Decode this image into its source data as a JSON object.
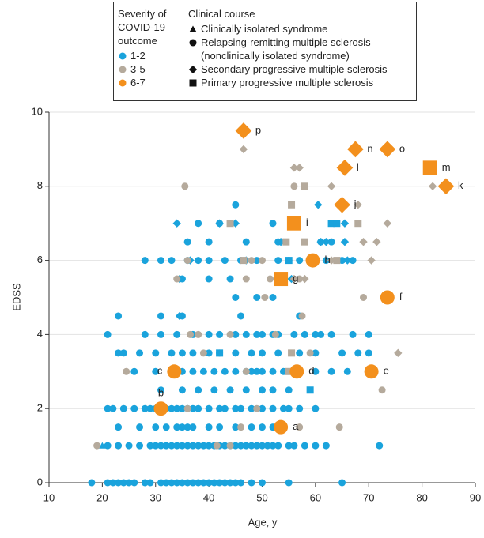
{
  "chart_data": {
    "type": "scatter",
    "xlabel": "Age, y",
    "ylabel": "EDSS",
    "xlim": [
      10,
      90
    ],
    "xticks": [
      10,
      20,
      30,
      40,
      50,
      60,
      70,
      80,
      90
    ],
    "ylim": [
      0,
      10
    ],
    "yticks": [
      0,
      2,
      4,
      6,
      8,
      10
    ],
    "grid": true,
    "severity_title": "Severity of COVID-19 outcome",
    "course_title": "Clinical course",
    "courses": [
      {
        "name": "Clinically isolated syndrome",
        "marker": "triangle"
      },
      {
        "name": "Relapsing-remitting multiple sclerosis (nonclinically isolated syndrome)",
        "marker": "circle"
      },
      {
        "name": "Secondary progressive multiple sclerosis",
        "marker": "diamond"
      },
      {
        "name": "Primary progressive multiple sclerosis",
        "marker": "square"
      }
    ],
    "series": [
      {
        "name": "1-2",
        "color": "#1aa3dc",
        "size": 9,
        "groups": [
          {
            "marker": "circle",
            "x": [
              18,
              21,
              22,
              23,
              24,
              25,
              26,
              28,
              29,
              31,
              32,
              33,
              34,
              35,
              36,
              37,
              38,
              39,
              40,
              41,
              42,
              43,
              44,
              45,
              46,
              48,
              50,
              55,
              65,
              21,
              23,
              25,
              27,
              29,
              30,
              31,
              32,
              33,
              34,
              35,
              36,
              37,
              38,
              39,
              40,
              41,
              42,
              43,
              44,
              45,
              46,
              47,
              48,
              49,
              50,
              51,
              52,
              53,
              55,
              56,
              58,
              60,
              62,
              72,
              23,
              27,
              30,
              32,
              34,
              35,
              36,
              37,
              40,
              42,
              45,
              48,
              50,
              52,
              21,
              22,
              24,
              26,
              28,
              29,
              30,
              32,
              33,
              34,
              35,
              36,
              37,
              38,
              40,
              42,
              43,
              45,
              46,
              48,
              50,
              52,
              54,
              55,
              57,
              60,
              31,
              35,
              38,
              41,
              44,
              47,
              50,
              52,
              55,
              26,
              30,
              33,
              35,
              37,
              39,
              41,
              43,
              45,
              47,
              48,
              49,
              50,
              52,
              54,
              57,
              60,
              63,
              66,
              23,
              24,
              27,
              30,
              33,
              35,
              37,
              40,
              42,
              45,
              48,
              50,
              53,
              57,
              60,
              65,
              68,
              70,
              21,
              28,
              31,
              34,
              37,
              40,
              42,
              45,
              47,
              49,
              50,
              52,
              53,
              56,
              58,
              60,
              61,
              63,
              67,
              70,
              23,
              31,
              35,
              46,
              57,
              45,
              49,
              52,
              35,
              40,
              44,
              28,
              31,
              33,
              36,
              38,
              40,
              43,
              46,
              49,
              53,
              55,
              57,
              60,
              62,
              65,
              67,
              36,
              40,
              47,
              53,
              61,
              63,
              38,
              42,
              52,
              45
            ],
            "values": [
              0,
              0,
              0,
              0,
              0,
              0,
              0,
              0,
              0,
              0,
              0,
              0,
              0,
              0,
              0,
              0,
              0,
              0,
              0,
              0,
              0,
              0,
              0,
              0,
              0,
              0,
              0,
              0,
              0,
              1,
              1,
              1,
              1,
              1,
              1,
              1,
              1,
              1,
              1,
              1,
              1,
              1,
              1,
              1,
              1,
              1,
              1,
              1,
              1,
              1,
              1,
              1,
              1,
              1,
              1,
              1,
              1,
              1,
              1,
              1,
              1,
              1,
              1,
              1,
              1.5,
              1.5,
              1.5,
              1.5,
              1.5,
              1.5,
              1.5,
              1.5,
              1.5,
              1.5,
              1.5,
              1.5,
              1.5,
              1.5,
              2,
              2,
              2,
              2,
              2,
              2,
              2,
              2,
              2,
              2,
              2,
              2,
              2,
              2,
              2,
              2,
              2,
              2,
              2,
              2,
              2,
              2,
              2,
              2,
              2,
              2,
              2.5,
              2.5,
              2.5,
              2.5,
              2.5,
              2.5,
              2.5,
              2.5,
              2.5,
              3,
              3,
              3,
              3,
              3,
              3,
              3,
              3,
              3,
              3,
              3,
              3,
              3,
              3,
              3,
              3,
              3,
              3,
              3,
              3.5,
              3.5,
              3.5,
              3.5,
              3.5,
              3.5,
              3.5,
              3.5,
              3.5,
              3.5,
              3.5,
              3.5,
              3.5,
              3.5,
              3.5,
              3.5,
              3.5,
              3.5,
              4,
              4,
              4,
              4,
              4,
              4,
              4,
              4,
              4,
              4,
              4,
              4,
              4,
              4,
              4,
              4,
              4,
              4,
              4,
              4,
              4.5,
              4.5,
              4.5,
              4.5,
              4.5,
              5,
              5,
              5,
              5.5,
              5.5,
              5.5,
              6,
              6,
              6,
              6,
              6,
              6,
              6,
              6,
              6,
              6,
              6,
              6,
              6,
              6,
              6,
              6,
              6.5,
              6.5,
              6.5,
              6.5,
              6.5,
              6.5,
              7,
              7,
              7,
              7.5
            ]
          },
          {
            "marker": "triangle",
            "x": [
              20
            ],
            "values": [
              1
            ]
          },
          {
            "marker": "diamond",
            "x": [
              34,
              34.5,
              34.5,
              36.5,
              42,
              45,
              47,
              53.5,
              55.5,
              60.5,
              61,
              62,
              65.5,
              66,
              65.5
            ],
            "values": [
              7,
              5.5,
              4.5,
              6,
              7,
              7,
              6,
              6.5,
              5.5,
              7.5,
              6.5,
              6.5,
              6.5,
              6,
              7
            ]
          },
          {
            "marker": "square",
            "x": [
              42,
              59,
              63,
              64,
              55
            ],
            "values": [
              3.5,
              2.5,
              7,
              7,
              6
            ]
          }
        ]
      },
      {
        "name": "3-5",
        "color": "#b5aa9c",
        "size": 9,
        "groups": [
          {
            "marker": "circle",
            "x": [
              19,
              24.5,
              35.5,
              34,
              36,
              36.5,
              44,
              48,
              50.5,
              52.5,
              56,
              57.5,
              57,
              59,
              64.5,
              69,
              72.5,
              47,
              49,
              55.5,
              57,
              47,
              51.5,
              46,
              44,
              39,
              36,
              38,
              50,
              41.5
            ],
            "values": [
              1,
              3,
              8,
              5.5,
              6,
              4,
              4,
              6,
              5,
              4,
              8,
              4.5,
              1.5,
              3.5,
              1.5,
              5,
              2.5,
              3,
              2,
              3,
              5.5,
              5.5,
              5.5,
              1.5,
              1,
              3.5,
              2,
              4,
              6,
              1
            ]
          },
          {
            "marker": "diamond",
            "x": [
              46.5,
              56,
              57,
              63,
              68,
              73.5,
              82,
              75.5,
              63,
              70.5,
              71.5,
              69,
              56,
              58
            ],
            "values": [
              9,
              8.5,
              8.5,
              8,
              7.5,
              7,
              8,
              3.5,
              6,
              6,
              6.5,
              6.5,
              5.5,
              5.5
            ]
          },
          {
            "marker": "square",
            "x": [
              44,
              55.5,
              58,
              54.5,
              58,
              68,
              55.5,
              55,
              64,
              46.5
            ],
            "values": [
              7,
              7.5,
              8,
              6.5,
              6.5,
              7,
              3.5,
              3,
              6,
              6
            ]
          }
        ]
      },
      {
        "name": "6-7",
        "color": "#f3901d",
        "size": 18,
        "groups": [
          {
            "marker": "circle",
            "x": [
              59.5,
              73.5,
              33.5,
              56.5,
              70.5,
              31,
              53.5
            ],
            "values": [
              6,
              5,
              3,
              3,
              3,
              2,
              1.5
            ],
            "point_labels": [
              "h",
              "f",
              "c",
              "d",
              "e",
              "b",
              "a"
            ]
          },
          {
            "marker": "diamond",
            "x": [
              46.5,
              67.5,
              73.5,
              65.5,
              84.5,
              65
            ],
            "values": [
              9.5,
              9,
              9,
              8.5,
              8,
              7.5
            ],
            "point_labels": [
              "p",
              "n",
              "o",
              "l",
              "k",
              "j"
            ]
          },
          {
            "marker": "square",
            "x": [
              81.5,
              56,
              53.5
            ],
            "values": [
              8.5,
              7,
              5.5
            ],
            "point_labels": [
              "m",
              "i",
              "g"
            ]
          }
        ]
      }
    ]
  }
}
